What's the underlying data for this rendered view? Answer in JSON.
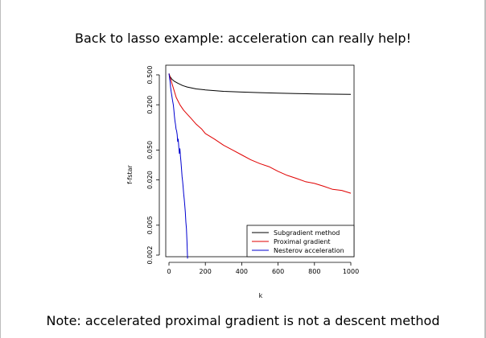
{
  "slide": {
    "title": "Back to lasso example: acceleration can really help!",
    "note": "Note: accelerated proximal gradient is not a descent method"
  },
  "chart_data": {
    "type": "line",
    "xlabel": "k",
    "ylabel": "f-fstar",
    "xlim": [
      0,
      1000
    ],
    "ylim": [
      0.002,
      0.5
    ],
    "y_scale": "log",
    "x_ticks": [
      0,
      200,
      400,
      600,
      800,
      1000
    ],
    "x_tick_labels": [
      "0",
      "200",
      "400",
      "600",
      "800",
      "1000"
    ],
    "y_ticks": [
      0.002,
      0.005,
      0.02,
      0.05,
      0.2,
      0.5
    ],
    "y_tick_labels": [
      "0.002",
      "0.005",
      "0.020",
      "0.050",
      "0.200",
      "0.500"
    ],
    "legend_position": "bottom-right",
    "series": [
      {
        "name": "Subgradient method",
        "color": "#000000",
        "x": [
          0,
          5,
          15,
          30,
          50,
          75,
          100,
          150,
          200,
          300,
          400,
          500,
          600,
          700,
          800,
          900,
          1000
        ],
        "y": [
          0.52,
          0.48,
          0.44,
          0.41,
          0.385,
          0.36,
          0.345,
          0.325,
          0.315,
          0.302,
          0.295,
          0.29,
          0.285,
          0.282,
          0.279,
          0.277,
          0.275
        ]
      },
      {
        "name": "Proximal gradient",
        "color": "#e00000",
        "x": [
          0,
          10,
          20,
          40,
          60,
          80,
          100,
          120,
          150,
          180,
          200,
          250,
          300,
          350,
          400,
          450,
          500,
          550,
          600,
          650,
          700,
          750,
          800,
          850,
          900,
          950,
          1000
        ],
        "y": [
          0.52,
          0.43,
          0.36,
          0.25,
          0.2,
          0.17,
          0.15,
          0.133,
          0.11,
          0.095,
          0.083,
          0.07,
          0.058,
          0.05,
          0.043,
          0.037,
          0.033,
          0.03,
          0.026,
          0.023,
          0.021,
          0.019,
          0.018,
          0.0165,
          0.015,
          0.0145,
          0.0133
        ]
      },
      {
        "name": "Nesterov acceleration",
        "color": "#0000d0",
        "x": [
          0,
          3,
          6,
          9,
          12,
          15,
          18,
          21,
          24,
          27,
          30,
          33,
          36,
          39,
          42,
          45,
          48,
          51,
          54,
          57,
          60,
          63,
          66,
          69,
          72,
          75,
          78,
          81,
          84,
          87,
          90,
          93,
          96,
          99,
          102
        ],
        "y": [
          0.52,
          0.46,
          0.4,
          0.34,
          0.3,
          0.27,
          0.24,
          0.22,
          0.2,
          0.17,
          0.14,
          0.12,
          0.11,
          0.095,
          0.09,
          0.08,
          0.065,
          0.07,
          0.055,
          0.045,
          0.052,
          0.042,
          0.035,
          0.028,
          0.022,
          0.019,
          0.016,
          0.013,
          0.011,
          0.009,
          0.0075,
          0.0055,
          0.0045,
          0.003,
          0.0018
        ]
      }
    ]
  }
}
